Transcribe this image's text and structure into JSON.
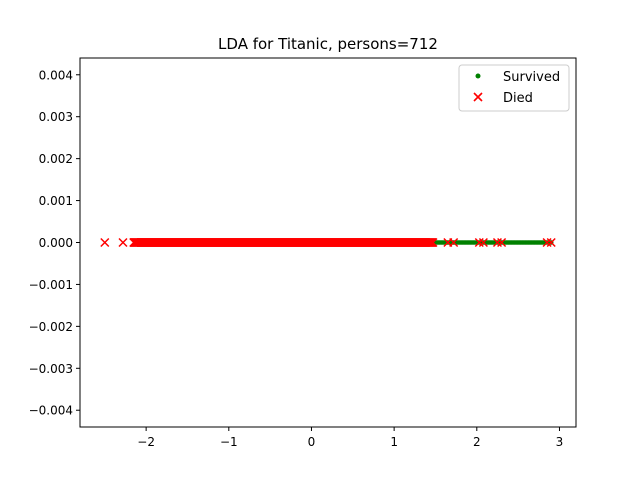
{
  "chart_data": {
    "type": "scatter",
    "title": "LDA for Titanic, persons=712",
    "xlabel": "",
    "ylabel": "",
    "xlim": [
      -2.8,
      3.2
    ],
    "ylim": [
      -0.0044,
      0.0044
    ],
    "xticks": [
      -2,
      -1,
      0,
      1,
      2,
      3
    ],
    "xtick_labels": [
      "−2",
      "−1",
      "0",
      "1",
      "2",
      "3"
    ],
    "yticks": [
      -0.004,
      -0.003,
      -0.002,
      -0.001,
      0.0,
      0.001,
      0.002,
      0.003,
      0.004
    ],
    "ytick_labels": [
      "−0.004",
      "−0.003",
      "−0.002",
      "−0.001",
      "0.000",
      "0.001",
      "0.002",
      "0.003",
      "0.004"
    ],
    "grid": false,
    "legend_position": "top-right",
    "series": [
      {
        "name": "Survived",
        "marker": "dot",
        "color": "#008000",
        "x_range": [
          1.48,
          2.9
        ],
        "count": 80,
        "y": 0
      },
      {
        "name": "Died",
        "marker": "x",
        "color": "#ff0000",
        "x_range": [
          -2.15,
          1.47
        ],
        "extra_points": [
          -2.5,
          -2.28,
          1.65,
          1.72,
          2.03,
          2.08,
          2.25,
          2.3,
          2.85,
          2.9
        ],
        "count": 632,
        "y": 0
      }
    ]
  }
}
